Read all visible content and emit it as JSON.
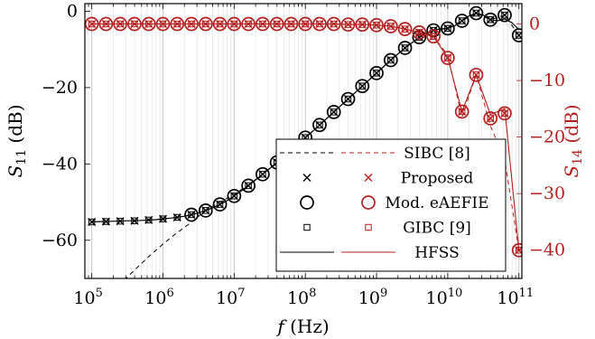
{
  "chart_data": {
    "type": "line",
    "xlabel": "f (Hz)",
    "ylabel_left": "S11 (dB)",
    "ylabel_right": "S14 (dB)",
    "x_scale": "log",
    "xlim": [
      80000,
      110000000000
    ],
    "ylim_left": [
      -70,
      2
    ],
    "ylim_right": [
      -45,
      3.6
    ],
    "x_ticks": [
      "10^5",
      "10^6",
      "10^7",
      "10^8",
      "10^9",
      "10^10",
      "10^11"
    ],
    "y_ticks_left": [
      "0",
      "−20",
      "−40",
      "−60"
    ],
    "y_ticks_right": [
      "0",
      "−10",
      "−20",
      "−30",
      "−40"
    ],
    "grid": "vertical minor log grid",
    "legend_position": "bottom-center",
    "colors": {
      "left": "#000000",
      "right": "#b51f1f"
    },
    "legend": [
      {
        "label": "SIBC [8]",
        "s11_style": "dashed line",
        "s14_style": "dashed line"
      },
      {
        "label": "Proposed",
        "s11_style": "x marker",
        "s14_style": "x marker"
      },
      {
        "label": "Mod. eAEFIE",
        "s11_style": "circle marker",
        "s14_style": "circle marker"
      },
      {
        "label": "GIBC [9]",
        "s11_style": "square marker",
        "s14_style": "square marker"
      },
      {
        "label": "HFSS",
        "s11_style": "solid line",
        "s14_style": "solid line"
      }
    ],
    "s11": {
      "x": [
        100000,
        125900,
        158500,
        199500,
        251200,
        316200,
        398100,
        501200,
        631000,
        794300,
        1000000,
        1259000,
        1585000,
        1995000,
        2512000,
        3162000,
        3981000,
        5012000,
        6310000,
        7943000,
        10000000,
        12590000,
        15850000,
        19950000,
        25120000,
        31620000,
        39810000,
        50120000,
        63100000,
        79430000,
        100000000,
        125900000,
        158500000,
        199500000,
        251200000,
        316200000,
        398100000,
        501200000,
        631000000,
        794300000,
        1000000000,
        1259000000,
        1585000000,
        1995000000,
        2512000000,
        3162000000,
        3981000000,
        5012000000,
        6310000000,
        7943000000,
        10000000000,
        12590000000,
        15850000000,
        19950000000,
        25120000000,
        31620000000,
        39810000000,
        50120000000,
        63100000000,
        79430000000,
        100000000000
      ],
      "proposed_x_index": [
        0,
        2,
        4,
        6,
        8,
        10,
        12,
        14,
        16,
        18,
        20,
        22,
        24,
        26,
        28,
        30,
        32,
        34,
        36,
        38,
        40,
        42,
        44,
        46,
        48,
        50,
        52,
        54,
        56,
        58,
        60
      ],
      "hfss": [
        -55.2,
        -55.1,
        -55.1,
        -55.0,
        -55.0,
        -54.9,
        -54.9,
        -54.8,
        -54.7,
        -54.6,
        -54.4,
        -54.2,
        -54.0,
        -53.7,
        -53.3,
        -52.8,
        -52.2,
        -51.5,
        -50.6,
        -49.6,
        -48.4,
        -47.1,
        -45.7,
        -44.2,
        -42.7,
        -41.2,
        -39.6,
        -38.0,
        -36.4,
        -34.8,
        -33.1,
        -31.5,
        -29.8,
        -28.1,
        -26.4,
        -24.7,
        -23.0,
        -21.3,
        -19.6,
        -17.9,
        -16.2,
        -14.5,
        -12.8,
        -11.2,
        -9.6,
        -8.2,
        -6.8,
        -5.8,
        -5.0,
        -4.6,
        -4.5,
        -3.8,
        -2.5,
        -1.2,
        -0.5,
        -1.0,
        -2.2,
        -2.5,
        -2.0,
        -3.0,
        -4.8
      ],
      "proposed": [
        -55.2,
        -55.1,
        -55.0,
        -54.9,
        -54.7,
        -54.4,
        -54.0,
        -53.3,
        -52.2,
        -50.6,
        -48.4,
        -45.7,
        -42.7,
        -39.6,
        -36.4,
        -33.1,
        -29.8,
        -26.4,
        -23.0,
        -19.6,
        -16.2,
        -12.8,
        -9.6,
        -6.8,
        -5.0,
        -4.5,
        -2.5,
        -0.5,
        -2.2,
        -1.0,
        -6.3
      ],
      "eaefie": [
        -55.2,
        -55.1,
        -55.0,
        -54.9,
        -54.7,
        -54.4,
        -54.0,
        -53.3,
        -52.2,
        -50.6,
        -48.4,
        -45.7,
        -42.7,
        -39.6,
        -36.4,
        -33.1,
        -29.8,
        -26.4,
        -23.0,
        -19.6,
        -16.2,
        -12.8,
        -9.6,
        -6.8,
        -5.0,
        -4.5,
        -2.5,
        -0.5,
        -2.2,
        -1.0,
        -6.3
      ],
      "gibc": [
        -55.2,
        -55.1,
        -55.0,
        -54.9,
        -54.7,
        -54.4,
        -54.0,
        -53.3,
        -52.2,
        -50.6,
        -48.4,
        -45.7,
        -42.7,
        -39.6,
        -36.4,
        -33.1,
        -29.8,
        -26.4,
        -23.0,
        -19.6,
        -16.2,
        -12.8,
        -9.6,
        -6.8,
        -5.0,
        -4.5,
        -2.5,
        -0.5,
        -2.2,
        -1.0,
        -6.3
      ],
      "sibc": [
        -80.0,
        -75.5,
        -71.5,
        -67.8,
        -64.3,
        -61.0,
        -58.0,
        -55.3,
        -52.2,
        -50.0,
        -48.0,
        -45.5,
        -42.7,
        -39.6,
        -36.4,
        -33.1,
        -29.8,
        -26.4,
        -23.0,
        -19.6,
        -16.2,
        -12.8,
        -9.6,
        -6.8,
        -5.0,
        -4.5,
        -2.5,
        -0.5,
        -2.2,
        -1.0,
        -6.3
      ]
    },
    "s14": {
      "x": [
        100000,
        158500,
        251200,
        398100,
        631000,
        1000000,
        1585000,
        2512000,
        3981000,
        6310000,
        10000000,
        15850000,
        25120000,
        39810000,
        63100000,
        100000000,
        158500000,
        251200000,
        398100000,
        631000000,
        1000000000,
        1585000000,
        2512000000,
        3981000000,
        6310000000,
        10000000000,
        15850000000,
        25120000000,
        39810000000,
        63100000000,
        100000000000
      ],
      "hfss": [
        0,
        0,
        0,
        0,
        0,
        0,
        0,
        0,
        0,
        0,
        0,
        0,
        0,
        0,
        0,
        0,
        0,
        0,
        -0.1,
        -0.1,
        -0.2,
        -0.4,
        -0.9,
        -1.5,
        -2.2,
        -6.0,
        -15.5,
        -9.0,
        -16.0,
        -15.0,
        -40.0
      ],
      "markers": [
        0,
        0,
        0,
        0,
        0,
        0,
        0,
        0,
        0,
        0,
        0,
        0,
        0,
        0,
        0,
        0,
        0,
        0,
        -0.1,
        -0.1,
        -0.2,
        -0.4,
        -0.9,
        -1.5,
        -2.2,
        -6.0,
        -15.5,
        -9.0,
        -16.7,
        -15.8,
        -40.0
      ],
      "sibc": [
        0,
        0,
        0,
        0,
        0,
        0,
        0,
        0,
        0,
        0,
        0,
        0,
        0,
        0,
        0,
        0,
        0,
        0,
        -0.1,
        -0.1,
        -0.2,
        -0.4,
        -0.9,
        -1.5,
        -2.2,
        -5.5,
        -16.5,
        -9.0,
        -18.0,
        -24.0,
        -40.0
      ]
    }
  }
}
